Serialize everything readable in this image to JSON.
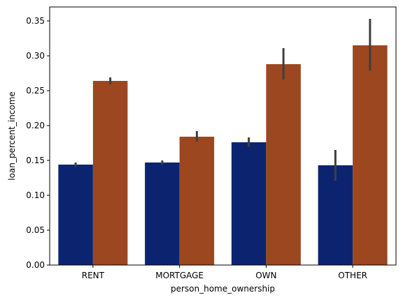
{
  "chart_data": {
    "type": "bar",
    "title": "",
    "xlabel": "person_home_ownership",
    "ylabel": "loan_percent_income",
    "categories": [
      "RENT",
      "MORTGAGE",
      "OWN",
      "OTHER"
    ],
    "ylim": [
      0,
      0.37
    ],
    "yticks": [
      0.0,
      0.05,
      0.1,
      0.15,
      0.2,
      0.25,
      0.3,
      0.35
    ],
    "ytick_labels": [
      "0.00",
      "0.05",
      "0.10",
      "0.15",
      "0.20",
      "0.25",
      "0.30",
      "0.35"
    ],
    "grid": false,
    "legend": "none",
    "series": [
      {
        "color": "#0c2470",
        "values": [
          0.144,
          0.147,
          0.176,
          0.143
        ],
        "ci_low": [
          0.141,
          0.144,
          0.17,
          0.121
        ],
        "ci_high": [
          0.147,
          0.15,
          0.183,
          0.165
        ]
      },
      {
        "color": "#9c4720",
        "values": [
          0.264,
          0.184,
          0.288,
          0.315
        ],
        "ci_low": [
          0.259,
          0.177,
          0.266,
          0.279
        ],
        "ci_high": [
          0.269,
          0.192,
          0.311,
          0.353
        ]
      }
    ],
    "errorbar_color": "#3f3f3f"
  }
}
